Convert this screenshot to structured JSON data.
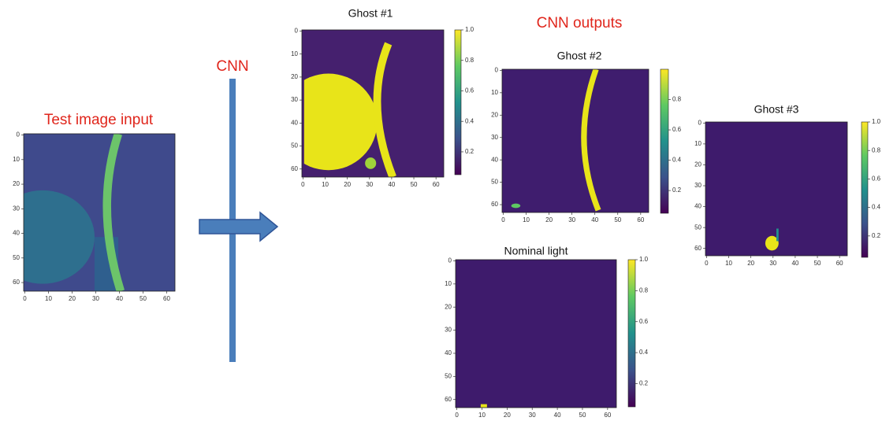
{
  "labels": {
    "cnn": "CNN",
    "cnn_outputs": "CNN outputs"
  },
  "panels": [
    {
      "title": "Test image input",
      "axis_ticks": [
        0,
        10,
        20,
        30,
        40,
        50,
        60
      ],
      "colorbar_ticks": []
    },
    {
      "title": "Ghost #1",
      "axis_ticks": [
        0,
        10,
        20,
        30,
        40,
        50,
        60
      ],
      "colorbar_ticks": [
        "1.0",
        "0.8",
        "0.6",
        "0.4",
        "0.2"
      ]
    },
    {
      "title": "Ghost #2",
      "axis_ticks": [
        0,
        10,
        20,
        30,
        40,
        50,
        60
      ],
      "colorbar_ticks": [
        "0.8",
        "0.6",
        "0.4",
        "0.2"
      ]
    },
    {
      "title": "Ghost #3",
      "axis_ticks": [
        0,
        10,
        20,
        30,
        40,
        50,
        60
      ],
      "colorbar_ticks": [
        "1.0",
        "0.8",
        "0.6",
        "0.4",
        "0.2"
      ]
    },
    {
      "title": "Nominal light",
      "axis_ticks": [
        0,
        10,
        20,
        30,
        40,
        50,
        60
      ],
      "colorbar_ticks": [
        "1.0",
        "0.8",
        "0.6",
        "0.4",
        "0.2"
      ]
    }
  ]
}
